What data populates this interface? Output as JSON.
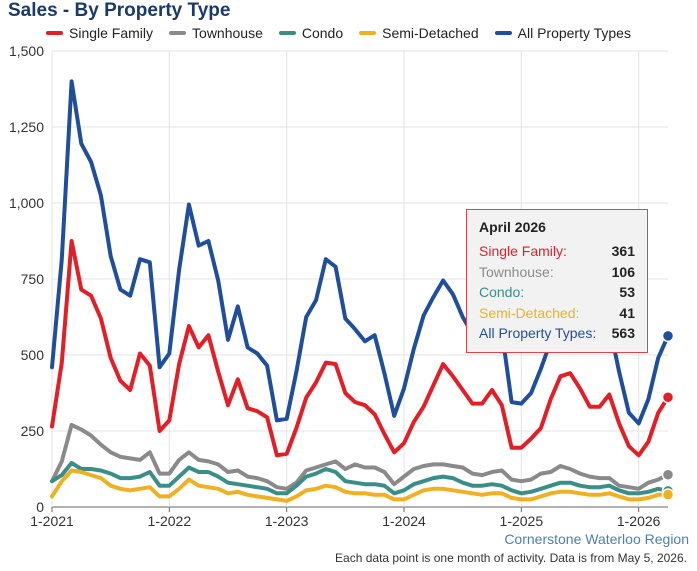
{
  "chart_data": {
    "type": "line",
    "title": "Sales - By Property Type",
    "xlabel": "",
    "ylabel": "",
    "ylim": [
      0,
      1500
    ],
    "yticks": [
      0,
      250,
      500,
      750,
      1000,
      1250,
      1500
    ],
    "ytick_labels": [
      "0",
      "250",
      "500",
      "750",
      "1,000",
      "1,250",
      "1,500"
    ],
    "xticks": [
      "2021-01",
      "2022-01",
      "2023-01",
      "2024-01",
      "2025-01",
      "2026-01"
    ],
    "xtick_labels": [
      "1-2021",
      "1-2022",
      "1-2023",
      "1-2024",
      "1-2025",
      "1-2026"
    ],
    "xlim": [
      "2021-01",
      "2026-04"
    ],
    "grid": true,
    "legend_position": "top",
    "x": [
      "2021-01",
      "2021-02",
      "2021-03",
      "2021-04",
      "2021-05",
      "2021-06",
      "2021-07",
      "2021-08",
      "2021-09",
      "2021-10",
      "2021-11",
      "2021-12",
      "2022-01",
      "2022-02",
      "2022-03",
      "2022-04",
      "2022-05",
      "2022-06",
      "2022-07",
      "2022-08",
      "2022-09",
      "2022-10",
      "2022-11",
      "2022-12",
      "2023-01",
      "2023-02",
      "2023-03",
      "2023-04",
      "2023-05",
      "2023-06",
      "2023-07",
      "2023-08",
      "2023-09",
      "2023-10",
      "2023-11",
      "2023-12",
      "2024-01",
      "2024-02",
      "2024-03",
      "2024-04",
      "2024-05",
      "2024-06",
      "2024-07",
      "2024-08",
      "2024-09",
      "2024-10",
      "2024-11",
      "2024-12",
      "2025-01",
      "2025-02",
      "2025-03",
      "2025-04",
      "2025-05",
      "2025-06",
      "2025-07",
      "2025-08",
      "2025-09",
      "2025-10",
      "2025-11",
      "2025-12",
      "2026-01",
      "2026-02",
      "2026-03",
      "2026-04"
    ],
    "series": [
      {
        "name": "Single Family",
        "color": "#e31e26",
        "values": [
          265,
          475,
          875,
          715,
          695,
          620,
          490,
          415,
          385,
          505,
          465,
          250,
          285,
          470,
          595,
          525,
          565,
          445,
          335,
          420,
          325,
          315,
          295,
          170,
          175,
          260,
          360,
          410,
          475,
          470,
          375,
          345,
          335,
          305,
          240,
          180,
          210,
          280,
          330,
          400,
          470,
          430,
          385,
          340,
          340,
          385,
          335,
          195,
          195,
          225,
          260,
          355,
          430,
          440,
          390,
          330,
          330,
          370,
          275,
          200,
          170,
          215,
          310,
          361
        ]
      },
      {
        "name": "Townhouse",
        "color": "#8a8a8a",
        "values": [
          85,
          150,
          270,
          255,
          235,
          205,
          180,
          165,
          160,
          155,
          180,
          110,
          110,
          155,
          180,
          155,
          150,
          140,
          115,
          120,
          100,
          95,
          85,
          65,
          60,
          80,
          120,
          130,
          140,
          150,
          125,
          140,
          130,
          130,
          115,
          75,
          100,
          125,
          135,
          140,
          140,
          135,
          130,
          110,
          105,
          115,
          120,
          90,
          85,
          90,
          110,
          115,
          135,
          125,
          110,
          100,
          95,
          95,
          70,
          65,
          60,
          80,
          90,
          106
        ]
      },
      {
        "name": "Condo",
        "color": "#3a8e88",
        "values": [
          85,
          105,
          145,
          125,
          125,
          120,
          110,
          95,
          95,
          100,
          115,
          70,
          70,
          100,
          130,
          115,
          115,
          100,
          80,
          75,
          70,
          65,
          60,
          45,
          45,
          70,
          100,
          110,
          125,
          115,
          85,
          80,
          75,
          75,
          70,
          45,
          55,
          75,
          85,
          95,
          100,
          95,
          80,
          70,
          70,
          75,
          70,
          55,
          45,
          50,
          60,
          70,
          80,
          80,
          70,
          65,
          65,
          70,
          55,
          45,
          45,
          50,
          60,
          53
        ]
      },
      {
        "name": "Semi-Detached",
        "color": "#f0b020",
        "values": [
          35,
          85,
          120,
          115,
          105,
          95,
          70,
          60,
          55,
          60,
          65,
          35,
          35,
          60,
          90,
          70,
          65,
          60,
          45,
          50,
          40,
          35,
          30,
          25,
          20,
          35,
          55,
          60,
          70,
          65,
          50,
          45,
          45,
          40,
          40,
          25,
          25,
          40,
          55,
          60,
          60,
          55,
          50,
          45,
          40,
          45,
          45,
          30,
          25,
          25,
          35,
          45,
          50,
          50,
          45,
          40,
          40,
          45,
          35,
          25,
          25,
          30,
          40,
          41
        ]
      },
      {
        "name": "All Property Types",
        "color": "#1f4e9c",
        "values": [
          460,
          815,
          1400,
          1195,
          1135,
          1025,
          825,
          715,
          695,
          815,
          805,
          460,
          505,
          780,
          995,
          860,
          875,
          745,
          550,
          660,
          525,
          505,
          465,
          285,
          290,
          445,
          625,
          680,
          815,
          790,
          620,
          585,
          545,
          565,
          440,
          300,
          390,
          520,
          630,
          690,
          745,
          700,
          625,
          570,
          560,
          610,
          580,
          345,
          340,
          375,
          455,
          545,
          660,
          665,
          595,
          530,
          525,
          600,
          445,
          310,
          275,
          355,
          490,
          563
        ]
      }
    ]
  },
  "tooltip": {
    "title": "April 2026",
    "rows": [
      {
        "label": "Single Family:",
        "value": "361",
        "color": "#e31e26"
      },
      {
        "label": "Townhouse:",
        "value": "106",
        "color": "#8a8a8a"
      },
      {
        "label": "Condo:",
        "value": "53",
        "color": "#3a8e88"
      },
      {
        "label": "Semi-Detached:",
        "value": "41",
        "color": "#f0b020"
      },
      {
        "label": "All Property Types:",
        "value": "563",
        "color": "#1f4e9c"
      }
    ]
  },
  "source": "Cornerstone Waterloo Region",
  "note": "Each data point is one month of activity. Data is from May 5, 2026."
}
